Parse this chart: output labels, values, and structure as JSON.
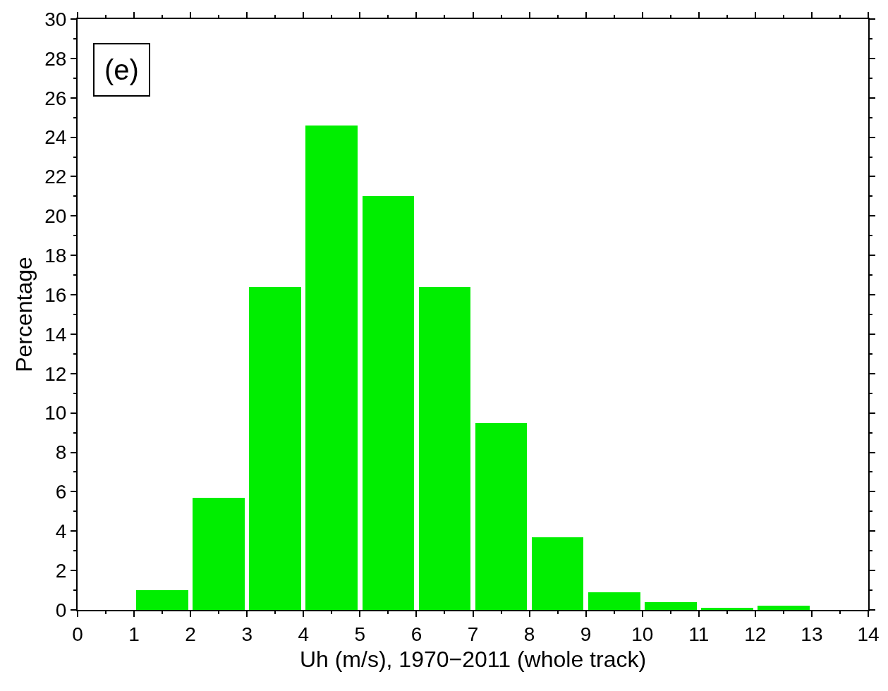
{
  "chart_data": {
    "type": "histogram",
    "xlabel": "Uh (m/s), 1970−2011 (whole track)",
    "ylabel": "Percentage",
    "annotations": [
      "(e)"
    ],
    "bins": [
      1,
      2,
      3,
      4,
      5,
      6,
      7,
      8,
      9,
      10,
      11,
      12,
      13
    ],
    "values": [
      1.0,
      5.7,
      16.4,
      24.6,
      21.0,
      16.4,
      9.5,
      3.7,
      0.9,
      0.4,
      0.1,
      0.2
    ],
    "color": "#00ee00",
    "xlim": [
      0,
      14
    ],
    "xticks": [
      0,
      1,
      2,
      3,
      4,
      5,
      6,
      7,
      8,
      9,
      10,
      11,
      12,
      13,
      14
    ],
    "ylim": [
      0,
      30
    ],
    "yticks": [
      0,
      2,
      4,
      6,
      8,
      10,
      12,
      14,
      16,
      18,
      20,
      22,
      24,
      26,
      28,
      30
    ]
  }
}
